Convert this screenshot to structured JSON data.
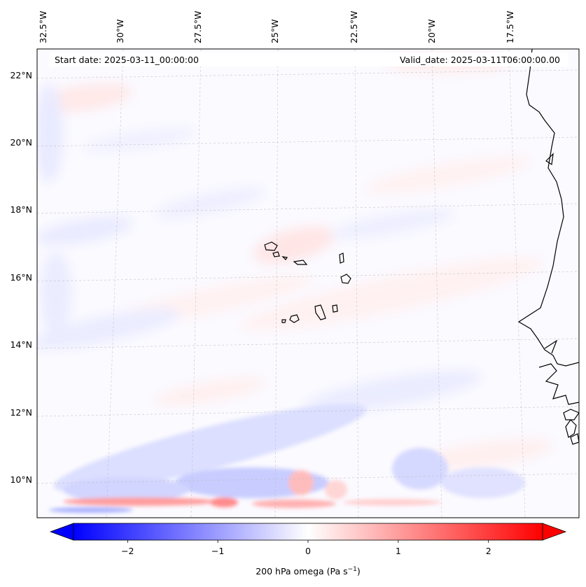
{
  "header": {
    "start_date": "Start date: 2025-03-11_00:00:00",
    "valid_date": "Valid_date: 2025-03-11T06:00:00.00"
  },
  "axes": {
    "lon_labels": [
      "32.5°W",
      "30°W",
      "27.5°W",
      "25°W",
      "22.5°W",
      "20°W",
      "17.5°W"
    ],
    "lat_labels": [
      "22°N",
      "20°N",
      "18°N",
      "16°N",
      "14°N",
      "12°N",
      "10°N"
    ]
  },
  "colorbar": {
    "label_main": "200 hPa omega (Pa s",
    "label_exp": "−1",
    "label_close": ")",
    "ticks": [
      "−2",
      "−1",
      "0",
      "1",
      "2"
    ],
    "tick_values": [
      -2,
      -1,
      0,
      1,
      2
    ],
    "range": [
      -2.6,
      2.6
    ],
    "negative_color": "#0000ff",
    "neutral_color": "#ffffff",
    "positive_color": "#ff0000"
  },
  "chart_data": {
    "type": "heatmap",
    "title": "",
    "variable": "200 hPa omega",
    "units": "Pa s-1",
    "lon_range": [
      -33,
      -16.5
    ],
    "lat_range": [
      8.8,
      22.8
    ],
    "value_range": [
      -2.6,
      2.6
    ],
    "notes": "Mostly weak values between about -0.5 and 0.5; stronger negative (blue) and positive (red) banding along southern edge near 9-10N"
  }
}
